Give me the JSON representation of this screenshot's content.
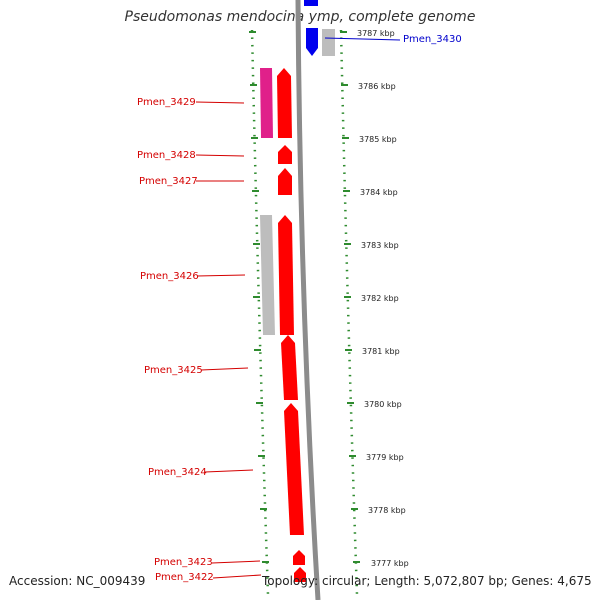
{
  "title": "Pseudomonas mendocina ymp, complete genome",
  "accession": "Accession: NC_009439",
  "topology": "Topology: circular; Length: 5,072,807 bp; Genes: 4,675",
  "kbp_ticks": [
    "3787 kbp",
    "3786 kbp",
    "3785 kbp",
    "3784 kbp",
    "3783 kbp",
    "3782 kbp",
    "3781 kbp",
    "3780 kbp",
    "3779 kbp",
    "3778 kbp",
    "3777 kbp"
  ],
  "genes": [
    {
      "id": "pmen_3430",
      "label": "Pmen_3430",
      "strand": "reverse",
      "color": "#0000ee"
    },
    {
      "id": "pmen_3429",
      "label": "Pmen_3429",
      "strand": "forward",
      "color": "#ff0000"
    },
    {
      "id": "pmen_3428",
      "label": "Pmen_3428",
      "strand": "forward",
      "color": "#ff0000"
    },
    {
      "id": "pmen_3427",
      "label": "Pmen_3427",
      "strand": "forward",
      "color": "#ff0000"
    },
    {
      "id": "pmen_3426",
      "label": "Pmen_3426",
      "strand": "forward",
      "color": "#ff0000"
    },
    {
      "id": "pmen_3425",
      "label": "Pmen_3425",
      "strand": "forward",
      "color": "#ff0000"
    },
    {
      "id": "pmen_3424",
      "label": "Pmen_3424",
      "strand": "forward",
      "color": "#ff0000"
    },
    {
      "id": "pmen_3423",
      "label": "Pmen_3423",
      "strand": "forward",
      "color": "#ff0000"
    },
    {
      "id": "pmen_3422",
      "label": "Pmen_3422",
      "strand": "forward",
      "color": "#ff0000"
    }
  ]
}
